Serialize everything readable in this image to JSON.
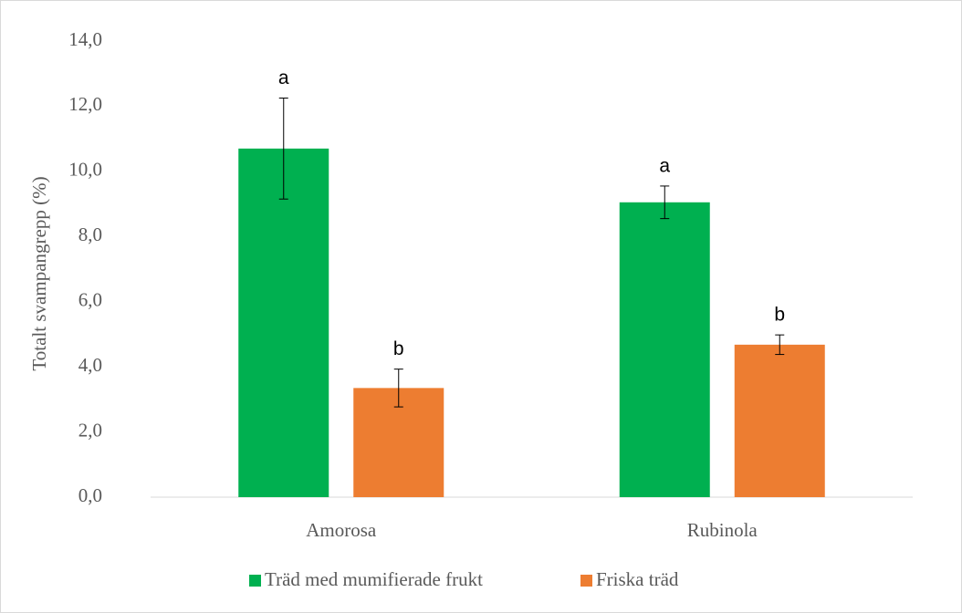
{
  "chart_data": {
    "type": "bar",
    "y_label": "Totalt svampangrepp (%)",
    "categories": [
      "Amorosa",
      "Rubinola"
    ],
    "series": [
      {
        "name": "Träd med mumifierade frukt",
        "color": "#00b050",
        "values": [
          10.7,
          9.05
        ],
        "errors": [
          1.55,
          0.5
        ],
        "labels": [
          "a",
          "a"
        ]
      },
      {
        "name": "Friska träd",
        "color": "#ed7d31",
        "values": [
          3.35,
          4.68
        ],
        "errors": [
          0.58,
          0.3
        ],
        "labels": [
          "b",
          "b"
        ]
      }
    ],
    "ylim": [
      0,
      14
    ],
    "yticks": [
      {
        "value": 0,
        "label": "0,0"
      },
      {
        "value": 2,
        "label": "2,0"
      },
      {
        "value": 4,
        "label": "4,0"
      },
      {
        "value": 6,
        "label": "6,0"
      },
      {
        "value": 8,
        "label": "8,0"
      },
      {
        "value": 10,
        "label": "10,0"
      },
      {
        "value": 12,
        "label": "12,0"
      },
      {
        "value": 14,
        "label": "14,0"
      }
    ],
    "grid": false,
    "legend": "bottom"
  }
}
